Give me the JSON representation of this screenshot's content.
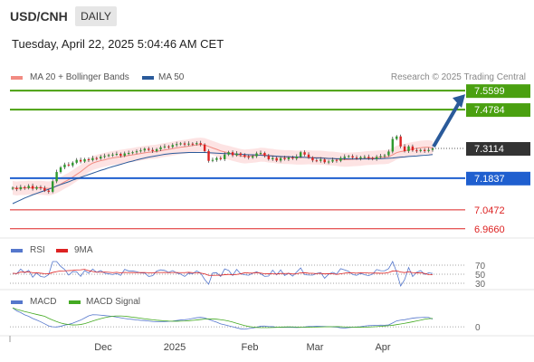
{
  "header": {
    "symbol": "USD/CNH",
    "timeframe": "DAILY"
  },
  "timestamp": "Tuesday, April 22, 2025 5:04:46 AM CET",
  "legend": {
    "bollinger": {
      "label": "MA 20 + Bollinger Bands",
      "color": "#f28b82"
    },
    "ma50": {
      "label": "MA 50",
      "color": "#2a5a9a"
    },
    "credit": "Research © 2025 Trading Central"
  },
  "rsi_legend": {
    "rsi": "RSI",
    "rsi_color": "#5577cc",
    "ma9": "9MA",
    "ma9_color": "#dd2222"
  },
  "macd_legend": {
    "macd": "MACD",
    "macd_color": "#5577cc",
    "signal": "MACD Signal",
    "signal_color": "#44aa22"
  },
  "chart_data": {
    "type": "candlestick",
    "symbol": "USD/CNH",
    "timeframe": "DAILY",
    "x_tick_labels": [
      "Dec",
      "2025",
      "Feb",
      "Mar",
      "Apr"
    ],
    "price_range": [
      6.93,
      7.58
    ],
    "current_price": 7.3114,
    "levels": [
      {
        "value": 7.5599,
        "label": "7.5599",
        "kind": "resistance",
        "color": "#4aa010"
      },
      {
        "value": 7.4784,
        "label": "7.4784",
        "kind": "resistance",
        "color": "#4aa010"
      },
      {
        "value": 7.1837,
        "label": "7.1837",
        "kind": "pivot",
        "color": "#1f5fcf"
      },
      {
        "value": 7.0472,
        "label": "7.0472",
        "kind": "support",
        "color": "#dd2222"
      },
      {
        "value": 6.966,
        "label": "6.9660",
        "kind": "support",
        "color": "#dd2222"
      }
    ],
    "close": [
      7.142,
      7.136,
      7.145,
      7.141,
      7.15,
      7.138,
      7.145,
      7.14,
      7.13,
      7.125,
      7.17,
      7.21,
      7.23,
      7.242,
      7.238,
      7.25,
      7.262,
      7.255,
      7.265,
      7.261,
      7.27,
      7.268,
      7.276,
      7.279,
      7.283,
      7.285,
      7.288,
      7.28,
      7.29,
      7.292,
      7.295,
      7.299,
      7.303,
      7.31,
      7.305,
      7.3,
      7.308,
      7.316,
      7.32,
      7.318,
      7.326,
      7.33,
      7.333,
      7.328,
      7.332,
      7.33,
      7.334,
      7.328,
      7.3,
      7.258,
      7.262,
      7.27,
      7.265,
      7.285,
      7.295,
      7.282,
      7.29,
      7.283,
      7.276,
      7.272,
      7.278,
      7.29,
      7.292,
      7.28,
      7.265,
      7.27,
      7.259,
      7.27,
      7.265,
      7.272,
      7.268,
      7.276,
      7.295,
      7.285,
      7.272,
      7.26,
      7.258,
      7.264,
      7.252,
      7.255,
      7.262,
      7.258,
      7.27,
      7.276,
      7.278,
      7.272,
      7.268,
      7.274,
      7.275,
      7.27,
      7.266,
      7.275,
      7.278,
      7.282,
      7.298,
      7.352,
      7.363,
      7.32,
      7.3,
      7.32,
      7.303,
      7.3,
      7.305,
      7.3,
      7.305,
      7.311
    ],
    "ma50": [
      7.074,
      7.082,
      7.09,
      7.098,
      7.105,
      7.112,
      7.118,
      7.124,
      7.13,
      7.136,
      7.142,
      7.15,
      7.156,
      7.162,
      7.168,
      7.175,
      7.181,
      7.187,
      7.193,
      7.199,
      7.205,
      7.211,
      7.217,
      7.222,
      7.228,
      7.233,
      7.238,
      7.243,
      7.248,
      7.253,
      7.257,
      7.262,
      7.266,
      7.27,
      7.274,
      7.277,
      7.28,
      7.283,
      7.286,
      7.288,
      7.29,
      7.291,
      7.292,
      7.293,
      7.294,
      7.294,
      7.294,
      7.294,
      7.294,
      7.293,
      7.292,
      7.291,
      7.29,
      7.289,
      7.289,
      7.288,
      7.287,
      7.286,
      7.285,
      7.284,
      7.284,
      7.283,
      7.282,
      7.281,
      7.28,
      7.279,
      7.278,
      7.277,
      7.276,
      7.276,
      7.275,
      7.274,
      7.274,
      7.273,
      7.272,
      7.271,
      7.27,
      7.27,
      7.269,
      7.268,
      7.268,
      7.267,
      7.267,
      7.267,
      7.266,
      7.266,
      7.266,
      7.266,
      7.266,
      7.266,
      7.266,
      7.267,
      7.267,
      7.268,
      7.269,
      7.27,
      7.272,
      7.274,
      7.275,
      7.277,
      7.278,
      7.279,
      7.281,
      7.282,
      7.283,
      7.285
    ],
    "bollinger": {
      "middle_ma_period": 20,
      "band_halfwidth_approx": 0.03
    },
    "rsi_levels": [
      70,
      50,
      30
    ],
    "macd_levels": [
      0
    ],
    "forecast_arrow": {
      "from": 7.3114,
      "to": 7.5599
    }
  }
}
